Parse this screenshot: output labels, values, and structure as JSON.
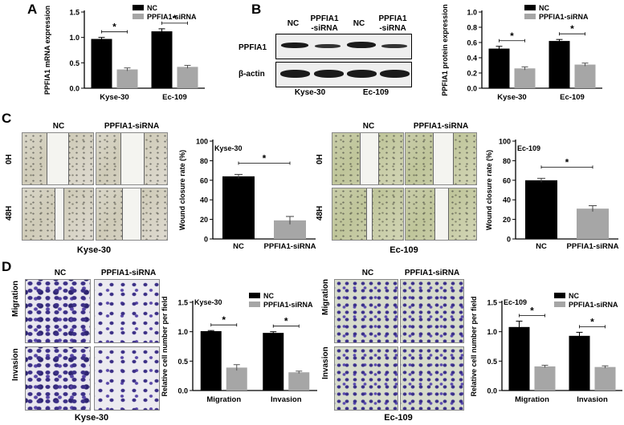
{
  "panels": {
    "A": "A",
    "B": "B",
    "C": "C",
    "D": "D"
  },
  "star": "*",
  "legend": {
    "nc": "NC",
    "sirna": "PPFIA1-siRNA"
  },
  "colors": {
    "nc": "#000000",
    "sirna": "#a6a6a6"
  },
  "panel_a": {
    "ylabel": "PPFIA1 mRNA expression"
  },
  "panel_b": {
    "blot_headers": [
      "NC",
      "PPFIA1\n-siRNA",
      "NC",
      "PPFIA1\n-siRNA"
    ],
    "blot_header_1": "NC",
    "blot_header_2a": "PPFIA1",
    "blot_header_2b": "-siRNA",
    "blot_header_3": "NC",
    "blot_header_4a": "PPFIA1",
    "blot_header_4b": "-siRNA",
    "row_labels": {
      "ppfia1": "PPFIA1",
      "actin": "β-actin"
    },
    "cell_labels": {
      "kyse": "Kyse-30",
      "ec": "Ec-109"
    },
    "ylabel": "PPFIA1 protein expression"
  },
  "panel_c": {
    "col_nc": "NC",
    "col_sirna": "PPFIA1-siRNA",
    "row_0h": "0H",
    "row_48h": "48H",
    "kyse_caption": "Kyse-30",
    "ec_caption": "Ec-109",
    "ylabel": "Wound closure rate (%)"
  },
  "panel_d": {
    "col_nc": "NC",
    "col_sirna": "PPFIA1-siRNA",
    "row_migration": "Migration",
    "row_invasion": "Invasion",
    "kyse_caption": "Kyse-30",
    "ec_caption": "Ec-109",
    "ylabel": "Relative cell number per field"
  },
  "chart_data": [
    {
      "id": "A",
      "type": "bar",
      "title": "",
      "ylabel": "PPFIA1 mRNA expression",
      "categories": [
        "Kyse-30",
        "Ec-109"
      ],
      "series": [
        {
          "name": "NC",
          "values": [
            0.97,
            1.12
          ],
          "errors": [
            0.03,
            0.05
          ]
        },
        {
          "name": "PPFIA1-siRNA",
          "values": [
            0.37,
            0.42
          ],
          "errors": [
            0.03,
            0.03
          ]
        }
      ],
      "ylim": [
        0,
        1.5
      ],
      "yticks": [
        "0.0",
        "0.5",
        "1.0",
        "1.5"
      ],
      "significance": [
        "*",
        "*"
      ],
      "legend": "top-right"
    },
    {
      "id": "B",
      "type": "bar",
      "title": "",
      "ylabel": "PPFIA1 protein expression",
      "categories": [
        "Kyse-30",
        "Ec-109"
      ],
      "series": [
        {
          "name": "NC",
          "values": [
            0.52,
            0.62
          ],
          "errors": [
            0.03,
            0.02
          ]
        },
        {
          "name": "PPFIA1-siRNA",
          "values": [
            0.26,
            0.31
          ],
          "errors": [
            0.02,
            0.02
          ]
        }
      ],
      "ylim": [
        0,
        1.0
      ],
      "yticks": [
        "0.0",
        "0.2",
        "0.4",
        "0.6",
        "0.8",
        "1.0"
      ],
      "significance": [
        "*",
        "*"
      ],
      "legend": "top-right"
    },
    {
      "id": "C-Kyse",
      "type": "bar",
      "title": "Kyse-30",
      "ylabel": "Wound closure rate (%)",
      "categories": [
        "NC",
        "PPFIA1-siRNA"
      ],
      "values": [
        64,
        19
      ],
      "errors": [
        2,
        4
      ],
      "ylim": [
        0,
        100
      ],
      "yticks": [
        "0",
        "20",
        "40",
        "60",
        "80",
        "100"
      ],
      "significance": "*"
    },
    {
      "id": "C-Ec",
      "type": "bar",
      "title": "Ec-109",
      "ylabel": "Wound closure rate (%)",
      "categories": [
        "NC",
        "PPFIA1-siRNA"
      ],
      "values": [
        60,
        31
      ],
      "errors": [
        2,
        3
      ],
      "ylim": [
        0,
        100
      ],
      "yticks": [
        "0",
        "20",
        "40",
        "60",
        "80",
        "100"
      ],
      "significance": "*"
    },
    {
      "id": "D-Kyse",
      "type": "bar",
      "title": "Kyse-30",
      "ylabel": "Relative cell number per field",
      "categories": [
        "Migration",
        "Invasion"
      ],
      "series": [
        {
          "name": "NC",
          "values": [
            1.01,
            0.98
          ],
          "errors": [
            0.01,
            0.02
          ]
        },
        {
          "name": "PPFIA1-siRNA",
          "values": [
            0.39,
            0.31
          ],
          "errors": [
            0.05,
            0.02
          ]
        }
      ],
      "ylim": [
        0,
        1.5
      ],
      "yticks": [
        "0.0",
        "0.5",
        "1.0",
        "1.5"
      ],
      "significance": [
        "*",
        "*"
      ],
      "legend": "top-right"
    },
    {
      "id": "D-Ec",
      "type": "bar",
      "title": "Ec-109",
      "ylabel": "Relative cell number per field",
      "categories": [
        "Migration",
        "Invasion"
      ],
      "series": [
        {
          "name": "NC",
          "values": [
            1.08,
            0.93
          ],
          "errors": [
            0.1,
            0.06
          ]
        },
        {
          "name": "PPFIA1-siRNA",
          "values": [
            0.41,
            0.4
          ],
          "errors": [
            0.02,
            0.02
          ]
        }
      ],
      "ylim": [
        0,
        1.5
      ],
      "yticks": [
        "0.0",
        "0.5",
        "1.0",
        "1.5"
      ],
      "significance": [
        "*",
        "*"
      ],
      "legend": "top-right"
    }
  ]
}
